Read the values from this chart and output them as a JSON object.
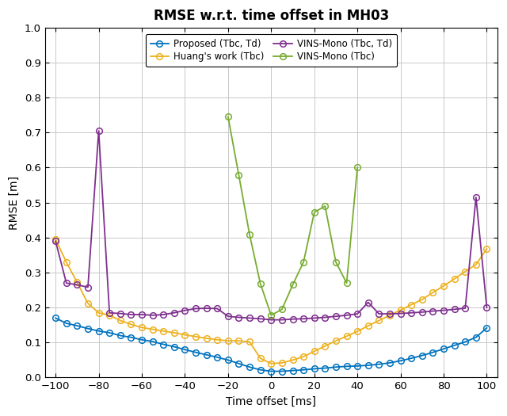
{
  "title": "RMSE w.r.t. time offset in MH03",
  "xlabel": "Time offset [ms]",
  "ylabel": "RMSE [m]",
  "xlim": [
    -105,
    105
  ],
  "ylim": [
    0,
    1.0
  ],
  "xticks": [
    -100,
    -80,
    -60,
    -40,
    -20,
    0,
    20,
    40,
    60,
    80,
    100
  ],
  "yticks": [
    0,
    0.1,
    0.2,
    0.3,
    0.4,
    0.5,
    0.6,
    0.7,
    0.8,
    0.9,
    1.0
  ],
  "proposed_x": [
    -100,
    -95,
    -90,
    -85,
    -80,
    -75,
    -70,
    -65,
    -60,
    -55,
    -50,
    -45,
    -40,
    -35,
    -30,
    -25,
    -20,
    -15,
    -10,
    -5,
    0,
    5,
    10,
    15,
    20,
    25,
    30,
    35,
    40,
    45,
    50,
    55,
    60,
    65,
    70,
    75,
    80,
    85,
    90,
    95,
    100
  ],
  "proposed_y": [
    0.17,
    0.155,
    0.148,
    0.14,
    0.133,
    0.128,
    0.12,
    0.115,
    0.108,
    0.103,
    0.095,
    0.088,
    0.08,
    0.072,
    0.065,
    0.058,
    0.05,
    0.04,
    0.03,
    0.022,
    0.018,
    0.018,
    0.02,
    0.022,
    0.025,
    0.027,
    0.03,
    0.032,
    0.033,
    0.035,
    0.038,
    0.042,
    0.048,
    0.055,
    0.063,
    0.072,
    0.082,
    0.092,
    0.102,
    0.115,
    0.142
  ],
  "huang_x": [
    -100,
    -95,
    -90,
    -85,
    -80,
    -75,
    -70,
    -65,
    -60,
    -55,
    -50,
    -45,
    -40,
    -35,
    -30,
    -25,
    -20,
    -15,
    -10,
    -5,
    0,
    5,
    10,
    15,
    20,
    25,
    30,
    35,
    40,
    45,
    50,
    55,
    60,
    65,
    70,
    75,
    80,
    85,
    90,
    95,
    100
  ],
  "huang_y": [
    0.395,
    0.33,
    0.272,
    0.212,
    0.185,
    0.178,
    0.163,
    0.152,
    0.143,
    0.138,
    0.133,
    0.128,
    0.122,
    0.117,
    0.112,
    0.108,
    0.105,
    0.105,
    0.102,
    0.055,
    0.04,
    0.042,
    0.05,
    0.06,
    0.075,
    0.09,
    0.105,
    0.118,
    0.132,
    0.148,
    0.163,
    0.178,
    0.193,
    0.208,
    0.223,
    0.243,
    0.262,
    0.282,
    0.303,
    0.323,
    0.368
  ],
  "vins_tbc_td_x": [
    -100,
    -95,
    -90,
    -85,
    -80,
    -75,
    -70,
    -65,
    -60,
    -55,
    -50,
    -45,
    -40,
    -35,
    -30,
    -25,
    -20,
    -15,
    -10,
    -5,
    0,
    5,
    10,
    15,
    20,
    25,
    30,
    35,
    40,
    45,
    50,
    55,
    60,
    65,
    70,
    75,
    80,
    85,
    90,
    95,
    100
  ],
  "vins_tbc_td_y": [
    0.39,
    0.27,
    0.265,
    0.258,
    0.705,
    0.185,
    0.183,
    0.18,
    0.18,
    0.178,
    0.18,
    0.185,
    0.192,
    0.197,
    0.198,
    0.197,
    0.175,
    0.172,
    0.17,
    0.168,
    0.165,
    0.165,
    0.167,
    0.168,
    0.17,
    0.172,
    0.175,
    0.178,
    0.182,
    0.215,
    0.182,
    0.182,
    0.183,
    0.185,
    0.187,
    0.19,
    0.192,
    0.195,
    0.198,
    0.515,
    0.2
  ],
  "vins_tbc_x": [
    -20,
    -15,
    -10,
    -5,
    0,
    5,
    10,
    15,
    20,
    25,
    30,
    35,
    40
  ],
  "vins_tbc_y": [
    0.745,
    0.578,
    0.408,
    0.268,
    0.178,
    0.195,
    0.265,
    0.33,
    0.472,
    0.49,
    0.33,
    0.27,
    0.6
  ],
  "proposed_color": "#0072BD",
  "huang_color": "#EDB120",
  "vins_tbc_td_color": "#7E2F8E",
  "vins_tbc_color": "#77AC30",
  "marker": "o",
  "markersize": 5.5,
  "linewidth": 1.3,
  "markerfacecolor": "none",
  "markeredgewidth": 1.1,
  "legend_labels": [
    "Proposed (Tbc, Td)",
    "Huang's work (Tbc)",
    "VINS-Mono (Tbc, Td)",
    "VINS-Mono (Tbc)"
  ],
  "legend_ncol": 2,
  "background_color": "#FFFFFF",
  "grid_color": "#C8C8C8",
  "title_fontsize": 12,
  "label_fontsize": 10,
  "tick_fontsize": 9.5,
  "legend_fontsize": 8.5
}
